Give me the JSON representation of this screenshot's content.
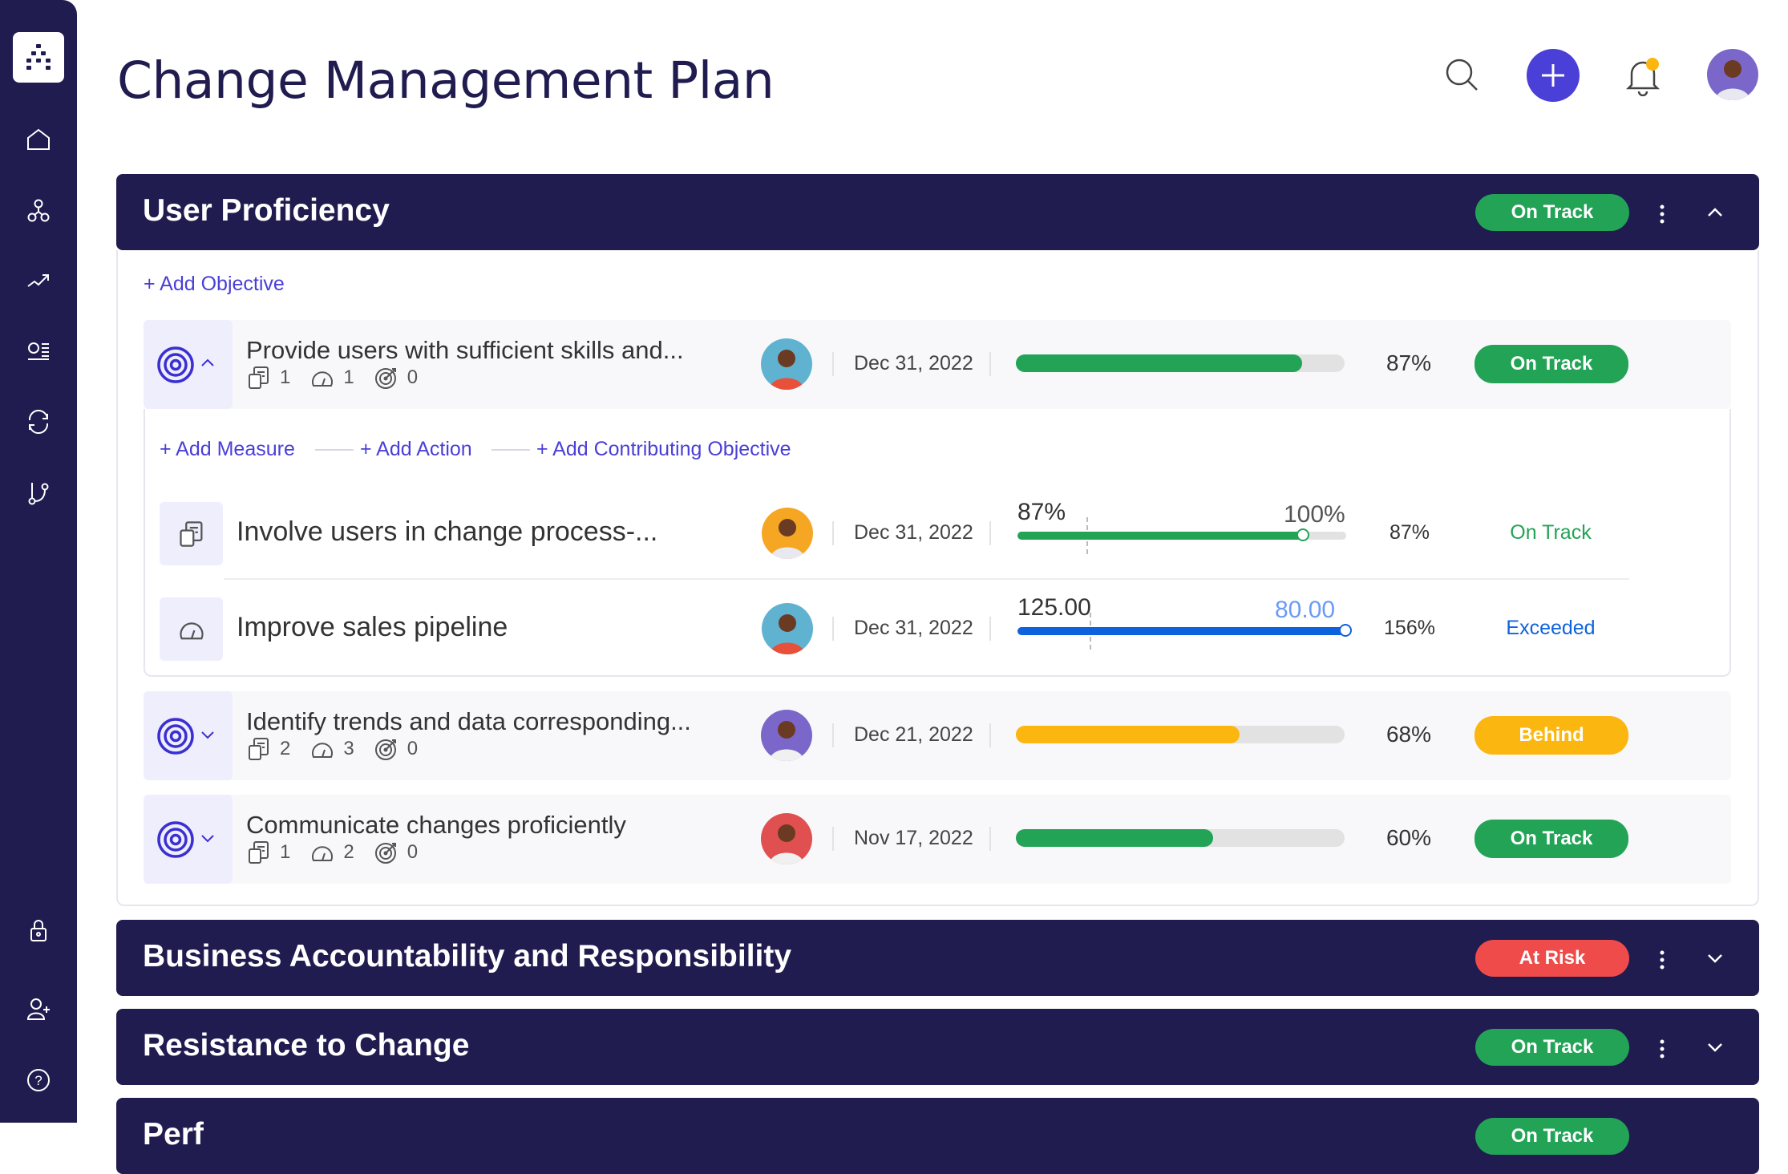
{
  "page": {
    "title": "Change Management Plan"
  },
  "sidebar": {
    "items": [
      "home-icon",
      "hierarchy-icon",
      "trending-up-icon",
      "list-icon",
      "sync-icon",
      "branch-icon"
    ],
    "bottom": [
      "lock-icon",
      "add-user-icon",
      "help-icon"
    ]
  },
  "header": {
    "search": "search-icon",
    "add": "plus-icon",
    "notifications": "bell-icon",
    "notification_dot_color": "#fbb70f"
  },
  "colors": {
    "navy": "#201c50",
    "accent": "#4a3fd6",
    "on_track": "#22a356",
    "behind": "#fbb70f",
    "at_risk": "#f04b4b",
    "exceeded": "#0e63dc"
  },
  "sections": [
    {
      "title": "User Proficiency",
      "status": "On Track",
      "expanded": true
    },
    {
      "title": "Business Accountability and Responsibility",
      "status": "At Risk",
      "expanded": false
    },
    {
      "title": "Resistance to Change",
      "status": "On Track",
      "expanded": false
    },
    {
      "title": "Perf",
      "status": "On Track",
      "expanded": false
    }
  ],
  "add_objective": "+ Add Objective",
  "add_links": {
    "measure": "+ Add Measure",
    "action": "+ Add Action",
    "contributing": "+ Add Contributing Objective"
  },
  "objectives": [
    {
      "title": "Provide users with sufficient skills and...",
      "actions": "1",
      "measures": "1",
      "objectives": "0",
      "date": "Dec 31, 2022",
      "progress": 87,
      "pct": "87%",
      "status": "On Track",
      "expanded": true
    },
    {
      "title": "Identify trends and data corresponding...",
      "actions": "2",
      "measures": "3",
      "objectives": "0",
      "date": "Dec 21, 2022",
      "progress": 68,
      "pct": "68%",
      "status": "Behind",
      "expanded": false
    },
    {
      "title": "Communicate changes proficiently",
      "actions": "1",
      "measures": "2",
      "objectives": "0",
      "date": "Nov 17, 2022",
      "progress": 60,
      "pct": "60%",
      "status": "On Track",
      "expanded": false
    }
  ],
  "measures": [
    {
      "title": "Involve users in change process-...",
      "date": "Dec 31, 2022",
      "current": "87%",
      "target": "100%",
      "progress": 87,
      "pct": "87%",
      "status": "On Track"
    },
    {
      "title": "Improve sales pipeline",
      "date": "Dec 31, 2022",
      "current": "125.00",
      "target": "80.00",
      "progress": 100,
      "pct": "156%",
      "status": "Exceeded"
    }
  ]
}
